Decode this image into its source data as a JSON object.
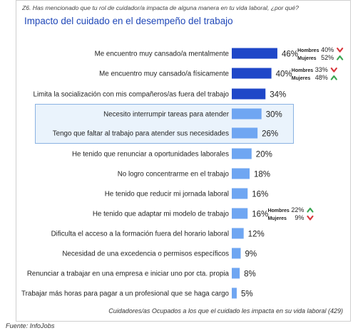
{
  "question": "Z6. Has mencionado que tu rol de cuidador/a impacta de alguna manera en tu vida laboral, ¿por qué?",
  "footnote": "Cuidadores/as Ocupados a los que el cuidado les impacta en su vida laboral (429)",
  "source": "Fuente: InfoJobs",
  "colors": {
    "dark_bar": "#1f47c8",
    "light_bar": "#6fa6f2",
    "up": "#3aa653",
    "down": "#d9373c",
    "title": "#1f47b8"
  },
  "chart_data": {
    "type": "bar",
    "orientation": "horizontal",
    "title": "Impacto del cuidado en el desempeño del trabajo",
    "value_suffix": "%",
    "categories": [
      "Me encuentro muy cansado/a mentalmente",
      "Me encuentro muy cansado/a físicamente",
      "Limita la socialización con mis compañeros/as fuera del trabajo",
      "Necesito interrumpir tareas para atender",
      "Tengo que faltar al trabajo para atender sus necesidades",
      "He tenido que renunciar a oportunidades laborales",
      "No logro concentrarme en el trabajo",
      "He tenido que reducir mi jornada laboral",
      "He tenido que adaptar mi modelo de trabajo",
      "Dificulta el acceso a la formación fuera del horario laboral",
      "Necesidad de una excedencia o permisos específicos",
      "Renunciar a trabajar en una empresa e iniciar uno por cta. propia",
      "Trabajar más horas para pagar a un profesional que se haga cargo"
    ],
    "values": [
      46,
      40,
      34,
      30,
      26,
      20,
      18,
      16,
      16,
      12,
      9,
      8,
      5
    ],
    "bar_shade": [
      "dark",
      "dark",
      "dark",
      "light",
      "light",
      "light",
      "light",
      "light",
      "light",
      "light",
      "light",
      "light",
      "light"
    ],
    "highlighted": [
      3,
      4
    ],
    "gender_breakdown": [
      {
        "index": 0,
        "rows": [
          {
            "label": "Hombres",
            "value": 40,
            "trend": "down"
          },
          {
            "label": "Mujeres",
            "value": 52,
            "trend": "up"
          }
        ]
      },
      {
        "index": 1,
        "rows": [
          {
            "label": "Hombres",
            "value": 33,
            "trend": "down"
          },
          {
            "label": "Mujeres",
            "value": 48,
            "trend": "up"
          }
        ]
      },
      {
        "index": 8,
        "rows": [
          {
            "label": "Hombres",
            "value": 22,
            "trend": "up"
          },
          {
            "label": "Mujeres",
            "value": 9,
            "trend": "down"
          }
        ]
      }
    ]
  }
}
